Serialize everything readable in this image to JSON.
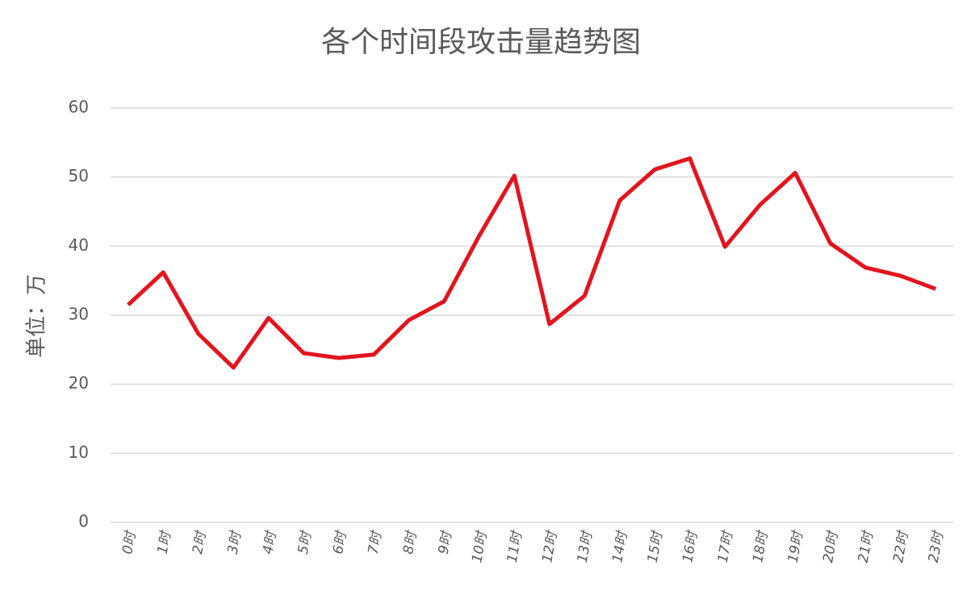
{
  "chart_data": {
    "type": "line",
    "title": "各个时间段攻击量趋势图",
    "y_label": "单位：万",
    "categories": [
      "0时",
      "1时",
      "2时",
      "3时",
      "4时",
      "5时",
      "6时",
      "7时",
      "8时",
      "9时",
      "10时",
      "11时",
      "12时",
      "13时",
      "14时",
      "15时",
      "16时",
      "17时",
      "18时",
      "19时",
      "20时",
      "21时",
      "22时",
      "23时"
    ],
    "series": [
      {
        "color": "#e3141e",
        "values": [
          31.5,
          36.2,
          27.3,
          22.4,
          29.6,
          24.5,
          23.8,
          24.3,
          29.3,
          32.0,
          41.5,
          50.2,
          28.7,
          32.8,
          46.6,
          51.1,
          52.7,
          39.9,
          46.0,
          50.6,
          40.4,
          36.9,
          35.7,
          33.8
        ]
      }
    ],
    "ylim": [
      0,
      60
    ],
    "yticks": [
      0,
      10,
      20,
      30,
      40,
      50,
      60
    ],
    "grid": true
  }
}
